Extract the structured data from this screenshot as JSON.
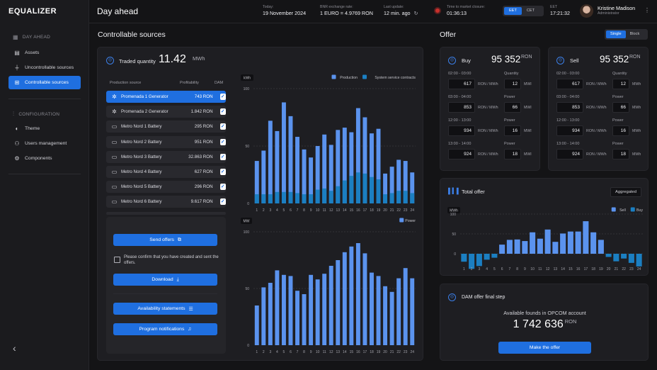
{
  "app": {
    "logo": "EQUALIZER"
  },
  "sidebar": {
    "sections": [
      {
        "title": "DAY AHEAD",
        "items": [
          {
            "label": "Assets",
            "icon": "grid-icon"
          },
          {
            "label": "Uncontrollable sources",
            "icon": "tower-icon"
          },
          {
            "label": "Controllable sources",
            "icon": "plug-icon",
            "active": true
          }
        ]
      },
      {
        "title": "CONFIGURATION",
        "items": [
          {
            "label": "Theme",
            "icon": "theme-icon"
          },
          {
            "label": "Users management",
            "icon": "users-icon"
          },
          {
            "label": "Components",
            "icon": "components-icon"
          }
        ]
      }
    ],
    "collapse": "‹"
  },
  "header": {
    "title": "Day ahead",
    "today_label": "Today:",
    "today": "19 November 2024",
    "bnr_label": "BNR exchange rate:",
    "bnr": "1 EURO = 4.9769 RON",
    "update_label": "Last update:",
    "update": "12 min. ago",
    "closure_label": "Time to market closure:",
    "closure": "01:36:13",
    "tz_options": [
      "EET",
      "CET"
    ],
    "tz_selected": "EET",
    "clock_label": "EET",
    "clock": "17:21:32",
    "user_name": "Kristine Madison",
    "user_role": "Administrator"
  },
  "controllable": {
    "section_title": "Controllable sources",
    "traded_label": "Traded quantity",
    "traded_value": "11.42",
    "traded_unit": "MWh",
    "table_headers": [
      "Production source",
      "Profitability",
      "DAM"
    ],
    "rows": [
      {
        "name": "Promenada 1 Generator",
        "value": "743 RON",
        "selected": true,
        "icon": "gear-icon"
      },
      {
        "name": "Promenada 2 Generator",
        "value": "1.842 RON",
        "icon": "gear-icon"
      },
      {
        "name": "Metro Nord 1 Battery",
        "value": "295 RON",
        "icon": "battery-icon"
      },
      {
        "name": "Metro Nord 2 Battery",
        "value": "951 RON",
        "icon": "battery-icon"
      },
      {
        "name": "Metro Nord 3 Battery",
        "value": "32.863 RON",
        "icon": "battery-icon"
      },
      {
        "name": "Metro Nord 4 Battery",
        "value": "627 RON",
        "icon": "battery-icon"
      },
      {
        "name": "Metro Nord 5 Battery",
        "value": "296 RON",
        "icon": "battery-icon"
      },
      {
        "name": "Metro Nord 6 Battery",
        "value": "9.617 RON",
        "icon": "battery-icon"
      }
    ],
    "send_offers": "Send offers",
    "confirm_text": "Please confirm that you have created and sent the offers.",
    "download": "Download",
    "availability": "Availability statements",
    "notifications": "Program notifications"
  },
  "offer": {
    "section_title": "Offer",
    "toggle": [
      "Single",
      "Block"
    ],
    "toggle_selected": "Single",
    "buy": {
      "title": "Buy",
      "total": "95 352",
      "currency": "RON",
      "rows": [
        {
          "time": "02:00 - 03:00",
          "price": "617",
          "price_unit": "RON / MWh",
          "qty_label": "Quantity",
          "qty": "12",
          "qty_unit": "MWl"
        },
        {
          "time": "03:00 - 04:00",
          "price": "853",
          "price_unit": "RON / MWh",
          "qty_label": "Power",
          "qty": "66",
          "qty_unit": "MWl"
        },
        {
          "time": "12:00 - 13:00",
          "price": "934",
          "price_unit": "RON / MWh",
          "qty_label": "Power",
          "qty": "16",
          "qty_unit": "MWl"
        },
        {
          "time": "13:00 - 14:00",
          "price": "924",
          "price_unit": "RON / MWh",
          "qty_label": "Power",
          "qty": "18",
          "qty_unit": "MWl"
        }
      ]
    },
    "sell": {
      "title": "Sell",
      "total": "95 352",
      "currency": "RON",
      "rows": [
        {
          "time": "02:00 - 03:00",
          "price": "617",
          "price_unit": "RON / MWh",
          "qty_label": "Quantity",
          "qty": "12",
          "qty_unit": "MWh"
        },
        {
          "time": "03:00 - 04:00",
          "price": "853",
          "price_unit": "RON / MWh",
          "qty_label": "Power",
          "qty": "66",
          "qty_unit": "MWh"
        },
        {
          "time": "12:00 - 13:00",
          "price": "934",
          "price_unit": "RON / MWh",
          "qty_label": "Power",
          "qty": "16",
          "qty_unit": "MWh"
        },
        {
          "time": "13:00 - 14:00",
          "price": "924",
          "price_unit": "RON / MWh",
          "qty_label": "Power",
          "qty": "18",
          "qty_unit": "MWh"
        }
      ]
    },
    "total_title": "Total offer",
    "aggregated": "Aggregated",
    "dam_title": "DAM offer final step",
    "dam_label": "Available founds in OPCOM account",
    "dam_value": "1 742 636",
    "dam_currency": "RON",
    "make_offer": "Make the offer"
  },
  "colors": {
    "accent": "#1f6fe0",
    "series_light": "#5b93ee",
    "series_dark": "#1b7fc2"
  },
  "chart_data": [
    {
      "type": "bar",
      "ylabel": "kWh",
      "ylim": [
        0,
        100
      ],
      "yticks": [
        0,
        50,
        100
      ],
      "categories": [
        "1",
        "2",
        "3",
        "4",
        "5",
        "6",
        "7",
        "8",
        "9",
        "10",
        "11",
        "12",
        "13",
        "14",
        "15",
        "16",
        "17",
        "18",
        "19",
        "20",
        "21",
        "22",
        "23",
        "24"
      ],
      "series": [
        {
          "name": "Production",
          "values": [
            37,
            46,
            72,
            63,
            88,
            76,
            58,
            47,
            40,
            50,
            60,
            51,
            64,
            66,
            62,
            83,
            75,
            61,
            65,
            26,
            32,
            38,
            37,
            27
          ]
        },
        {
          "name": "System service contracts",
          "values": [
            8,
            8,
            8,
            10,
            10,
            10,
            9,
            8,
            8,
            12,
            13,
            11,
            15,
            20,
            24,
            27,
            26,
            23,
            21,
            8,
            9,
            11,
            11,
            9
          ]
        }
      ],
      "legend": "top-right"
    },
    {
      "type": "bar",
      "ylabel": "MW",
      "ylim": [
        0,
        100
      ],
      "yticks": [
        0,
        50,
        100
      ],
      "categories": [
        "1",
        "2",
        "3",
        "4",
        "5",
        "6",
        "7",
        "8",
        "9",
        "10",
        "11",
        "12",
        "13",
        "14",
        "15",
        "16",
        "17",
        "18",
        "19",
        "20",
        "21",
        "22",
        "23",
        "24"
      ],
      "series": [
        {
          "name": "Power",
          "values": [
            35,
            51,
            55,
            66,
            62,
            61,
            48,
            45,
            62,
            58,
            63,
            70,
            75,
            82,
            87,
            90,
            81,
            64,
            61,
            52,
            47,
            59,
            68,
            59
          ]
        }
      ],
      "legend": "top-right"
    },
    {
      "type": "bar",
      "ylabel": "MWh",
      "title": "Total offer",
      "ylim": [
        -25,
        100
      ],
      "yticks": [
        0,
        50,
        100
      ],
      "categories": [
        "1",
        "2",
        "3",
        "4",
        "5",
        "6",
        "7",
        "8",
        "9",
        "10",
        "11",
        "12",
        "13",
        "14",
        "15",
        "16",
        "17",
        "18",
        "19",
        "20",
        "21",
        "22",
        "23",
        "24"
      ],
      "series": [
        {
          "name": "Sell",
          "values": [
            0,
            0,
            0,
            0,
            0,
            23,
            35,
            36,
            32,
            54,
            38,
            61,
            30,
            51,
            56,
            56,
            82,
            54,
            35,
            0,
            0,
            0,
            0,
            0
          ]
        },
        {
          "name": "Buy",
          "values": [
            -20,
            -38,
            -31,
            -15,
            -10,
            0,
            0,
            0,
            0,
            0,
            0,
            0,
            0,
            0,
            0,
            0,
            0,
            0,
            0,
            -8,
            -19,
            -12,
            -23,
            -32
          ]
        }
      ],
      "legend": "top-right"
    }
  ]
}
